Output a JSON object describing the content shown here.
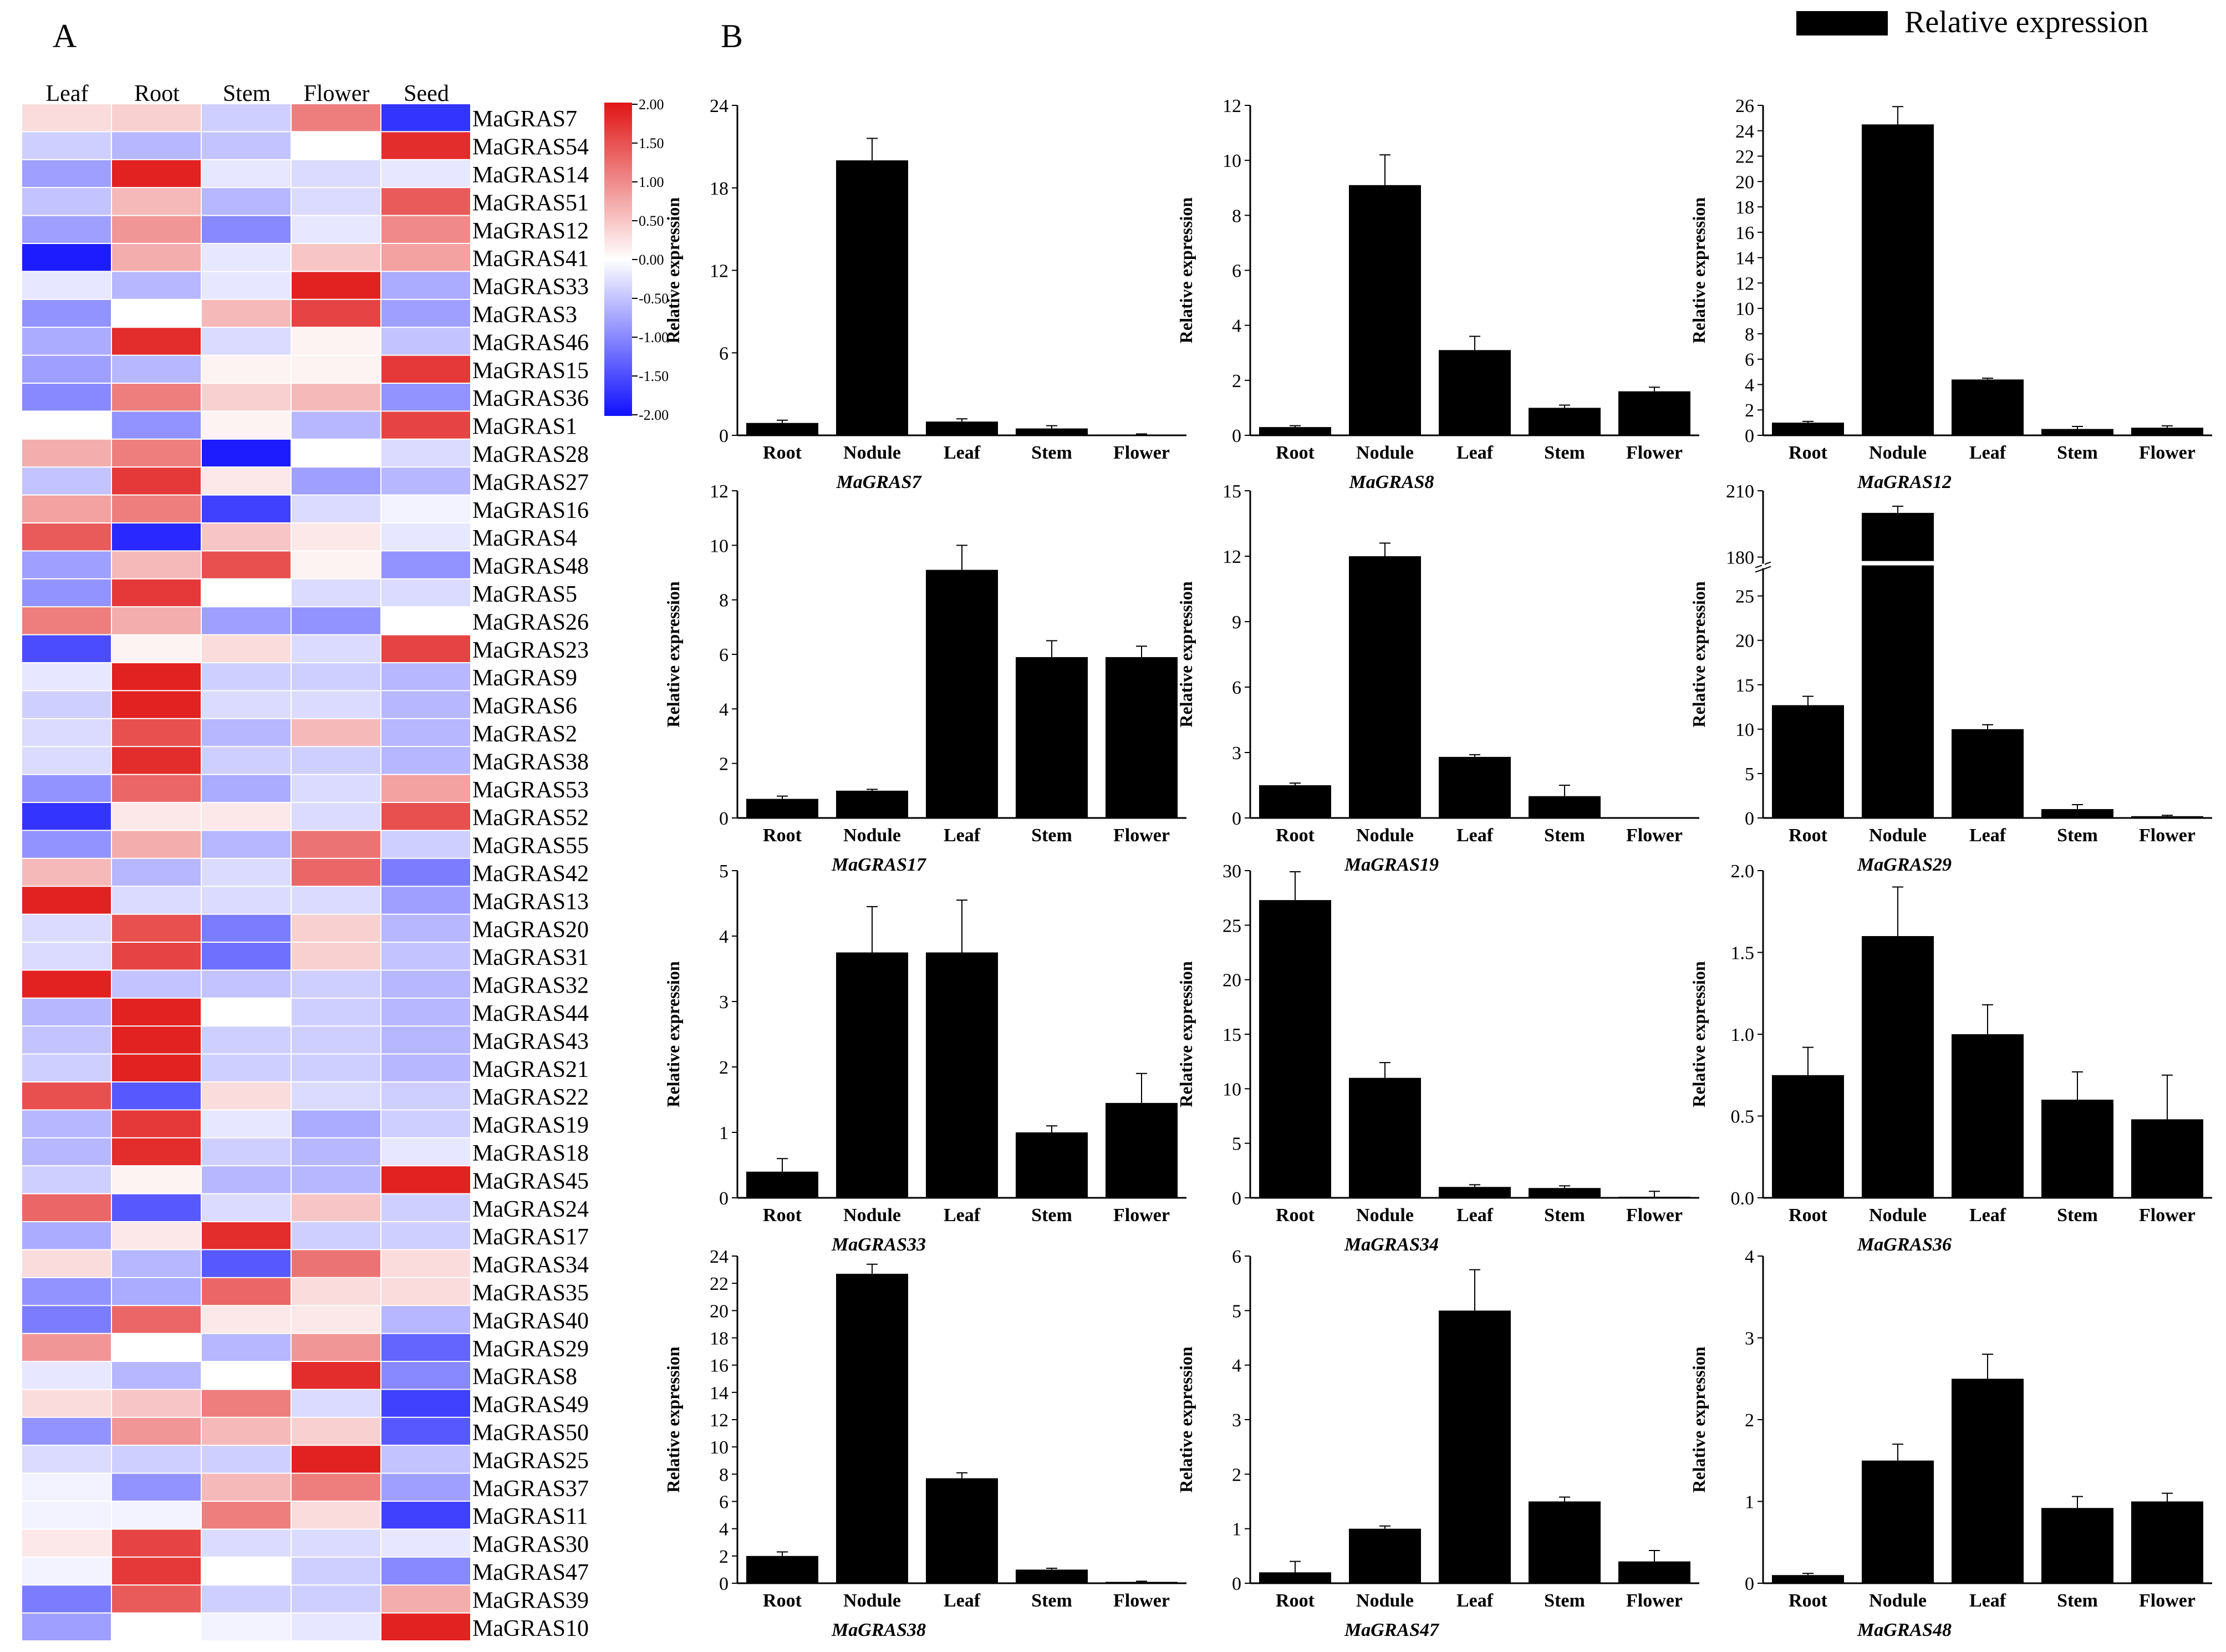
{
  "panels": {
    "a": "A",
    "b": "B"
  },
  "legend": {
    "label": "Relative expression",
    "color": "#000000"
  },
  "colors": {
    "bar": "#000000",
    "low": "#1010ff",
    "mid": "#ffffff",
    "high": "#e01515"
  },
  "chart_data": [
    {
      "type": "heatmap",
      "title": "",
      "columns": [
        "Leaf",
        "Root",
        "Stem",
        "Flower",
        "Seed"
      ],
      "colorbar": {
        "ticks": [
          "2.00",
          "1.50",
          "1.00",
          "0.50",
          "0.00",
          "-0.50",
          "-1.00",
          "-1.50",
          "-2.00"
        ],
        "range": [
          -2,
          2
        ]
      },
      "rows": [
        "MaGRAS7",
        "MaGRAS54",
        "MaGRAS14",
        "MaGRAS51",
        "MaGRAS12",
        "MaGRAS41",
        "MaGRAS33",
        "MaGRAS3",
        "MaGRAS46",
        "MaGRAS15",
        "MaGRAS36",
        "MaGRAS1",
        "MaGRAS28",
        "MaGRAS27",
        "MaGRAS16",
        "MaGRAS4",
        "MaGRAS48",
        "MaGRAS5",
        "MaGRAS26",
        "MaGRAS23",
        "MaGRAS9",
        "MaGRAS6",
        "MaGRAS2",
        "MaGRAS38",
        "MaGRAS53",
        "MaGRAS52",
        "MaGRAS55",
        "MaGRAS42",
        "MaGRAS13",
        "MaGRAS20",
        "MaGRAS31",
        "MaGRAS32",
        "MaGRAS44",
        "MaGRAS43",
        "MaGRAS21",
        "MaGRAS22",
        "MaGRAS19",
        "MaGRAS18",
        "MaGRAS45",
        "MaGRAS24",
        "MaGRAS17",
        "MaGRAS34",
        "MaGRAS35",
        "MaGRAS40",
        "MaGRAS29",
        "MaGRAS8",
        "MaGRAS49",
        "MaGRAS50",
        "MaGRAS25",
        "MaGRAS37",
        "MaGRAS11",
        "MaGRAS30",
        "MaGRAS47",
        "MaGRAS39",
        "MaGRAS10"
      ],
      "values": [
        [
          0.3,
          0.4,
          -0.4,
          1.1,
          -1.7
        ],
        [
          -0.4,
          -0.6,
          -0.5,
          0.0,
          1.8
        ],
        [
          -0.8,
          1.9,
          -0.2,
          -0.3,
          -0.2
        ],
        [
          -0.5,
          0.6,
          -0.6,
          -0.3,
          1.4
        ],
        [
          -0.8,
          0.9,
          -1.0,
          -0.2,
          1.0
        ],
        [
          -1.9,
          0.7,
          -0.2,
          0.5,
          0.8
        ],
        [
          -0.2,
          -0.6,
          -0.2,
          1.9,
          -0.7
        ],
        [
          -0.9,
          0.0,
          0.6,
          1.6,
          -0.8
        ],
        [
          -0.7,
          1.8,
          -0.3,
          0.1,
          -0.5
        ],
        [
          -0.8,
          -0.6,
          0.1,
          0.1,
          1.7
        ],
        [
          -1.0,
          1.1,
          0.4,
          0.6,
          -0.9
        ],
        [
          0.0,
          -0.9,
          0.1,
          -0.6,
          1.6
        ],
        [
          0.7,
          1.1,
          -1.9,
          0.0,
          -0.3
        ],
        [
          -0.5,
          1.7,
          0.2,
          -0.8,
          -0.6
        ],
        [
          0.8,
          1.1,
          -1.6,
          -0.3,
          -0.1
        ],
        [
          1.4,
          -1.8,
          0.5,
          0.2,
          -0.2
        ],
        [
          -0.8,
          0.6,
          1.5,
          0.1,
          -0.9
        ],
        [
          -0.9,
          1.7,
          0.0,
          -0.3,
          -0.3
        ],
        [
          1.1,
          0.7,
          -0.8,
          -0.9,
          0.0
        ],
        [
          -1.5,
          0.1,
          0.3,
          -0.3,
          1.6
        ],
        [
          -0.2,
          1.9,
          -0.4,
          -0.4,
          -0.6
        ],
        [
          -0.4,
          1.9,
          -0.3,
          -0.3,
          -0.6
        ],
        [
          -0.3,
          1.5,
          -0.6,
          0.6,
          -0.6
        ],
        [
          -0.3,
          1.8,
          -0.4,
          -0.4,
          -0.6
        ],
        [
          -0.9,
          1.3,
          -0.7,
          -0.3,
          0.8
        ],
        [
          -1.7,
          0.2,
          0.2,
          -0.3,
          1.5
        ],
        [
          -0.9,
          0.7,
          -0.6,
          1.2,
          -0.4
        ],
        [
          0.6,
          -0.6,
          -0.3,
          1.3,
          -1.1
        ],
        [
          1.9,
          -0.3,
          -0.3,
          -0.3,
          -0.8
        ],
        [
          -0.3,
          1.5,
          -1.1,
          0.4,
          -0.6
        ],
        [
          -0.3,
          1.6,
          -1.2,
          0.4,
          -0.5
        ],
        [
          1.9,
          -0.5,
          -0.5,
          -0.4,
          -0.6
        ],
        [
          -0.6,
          1.9,
          0.0,
          -0.4,
          -0.6
        ],
        [
          -0.5,
          1.9,
          -0.4,
          -0.4,
          -0.6
        ],
        [
          -0.4,
          1.9,
          -0.4,
          -0.4,
          -0.6
        ],
        [
          1.5,
          -1.4,
          0.3,
          -0.3,
          -0.4
        ],
        [
          -0.6,
          1.7,
          -0.2,
          -0.7,
          -0.4
        ],
        [
          -0.6,
          1.8,
          -0.4,
          -0.6,
          -0.2
        ],
        [
          -0.4,
          0.1,
          -0.6,
          -0.6,
          1.9
        ],
        [
          1.3,
          -1.4,
          -0.3,
          0.5,
          -0.4
        ],
        [
          -0.7,
          0.2,
          1.8,
          -0.4,
          -0.4
        ],
        [
          0.3,
          -0.6,
          -1.4,
          1.2,
          0.3
        ],
        [
          -0.9,
          -0.7,
          1.3,
          0.3,
          0.3
        ],
        [
          -1.1,
          1.3,
          0.2,
          0.2,
          -0.6
        ],
        [
          0.9,
          0.0,
          -0.6,
          0.9,
          -1.3
        ],
        [
          -0.2,
          -0.6,
          0.0,
          1.8,
          -1.0
        ],
        [
          0.3,
          0.5,
          1.1,
          -0.3,
          -1.6
        ],
        [
          -0.9,
          0.9,
          0.6,
          0.4,
          -1.4
        ],
        [
          -0.3,
          -0.4,
          -0.4,
          1.9,
          -0.5
        ],
        [
          -0.1,
          -0.9,
          0.6,
          1.1,
          -0.8
        ],
        [
          -0.1,
          -0.1,
          1.1,
          0.3,
          -1.6
        ],
        [
          0.2,
          1.6,
          -0.3,
          -0.3,
          -0.2
        ],
        [
          -0.1,
          1.7,
          0.0,
          -0.4,
          -1.0
        ],
        [
          -1.1,
          1.4,
          -0.4,
          -0.4,
          0.7
        ],
        [
          -0.8,
          0.0,
          -0.1,
          -0.2,
          1.9
        ]
      ]
    },
    {
      "type": "bar",
      "title": "MaGRAS7",
      "ylabel": "Relative expression",
      "categories": [
        "Root",
        "Nodule",
        "Leaf",
        "Stem",
        "Flower"
      ],
      "values": [
        0.9,
        20,
        1.0,
        0.5,
        0.05
      ],
      "errors": [
        0.2,
        1.6,
        0.2,
        0.2,
        0.05
      ],
      "ylim": [
        0,
        24
      ],
      "yticks": [
        "0",
        "6",
        "12",
        "18",
        "24"
      ]
    },
    {
      "type": "bar",
      "title": "MaGRAS8",
      "ylabel": "Relative expression",
      "categories": [
        "Root",
        "Nodule",
        "Leaf",
        "Stem",
        "Flower"
      ],
      "values": [
        0.3,
        9.1,
        3.1,
        1.0,
        1.6
      ],
      "errors": [
        0.05,
        1.1,
        0.5,
        0.1,
        0.15
      ],
      "ylim": [
        0,
        12
      ],
      "yticks": [
        "0",
        "2",
        "4",
        "6",
        "8",
        "10",
        "12"
      ]
    },
    {
      "type": "bar",
      "title": "MaGRAS12",
      "ylabel": "Relative expression",
      "categories": [
        "Root",
        "Nodule",
        "Leaf",
        "Stem",
        "Flower"
      ],
      "values": [
        1.0,
        24.5,
        4.4,
        0.5,
        0.6
      ],
      "errors": [
        0.1,
        1.4,
        0.1,
        0.2,
        0.15
      ],
      "ylim": [
        0,
        26
      ],
      "yticks": [
        "0",
        "2",
        "4",
        "6",
        "8",
        "10",
        "12",
        "14",
        "16",
        "18",
        "20",
        "22",
        "24",
        "26"
      ]
    },
    {
      "type": "bar",
      "title": "MaGRAS17",
      "ylabel": "Relative expression",
      "categories": [
        "Root",
        "Nodule",
        "Leaf",
        "Stem",
        "Flower"
      ],
      "values": [
        0.7,
        1.0,
        9.1,
        5.9,
        5.9
      ],
      "errors": [
        0.1,
        0.05,
        0.9,
        0.6,
        0.4
      ],
      "ylim": [
        0,
        12
      ],
      "yticks": [
        "0",
        "2",
        "4",
        "6",
        "8",
        "10",
        "12"
      ]
    },
    {
      "type": "bar",
      "title": "MaGRAS19",
      "ylabel": "Relative expression",
      "categories": [
        "Root",
        "Nodule",
        "Leaf",
        "Stem",
        "Flower"
      ],
      "values": [
        1.5,
        12.0,
        2.8,
        1.0,
        0.0
      ],
      "errors": [
        0.1,
        0.6,
        0.1,
        0.5,
        0.0
      ],
      "ylim": [
        0,
        15
      ],
      "yticks": [
        "0",
        "3",
        "6",
        "9",
        "12",
        "15"
      ]
    },
    {
      "type": "bar",
      "title": "MaGRAS29",
      "ylabel": "Relative expression",
      "categories": [
        "Root",
        "Nodule",
        "Leaf",
        "Stem",
        "Flower"
      ],
      "values": [
        12.7,
        200,
        10.0,
        1.0,
        0.2
      ],
      "errors": [
        1.0,
        3.0,
        0.5,
        0.5,
        0.1
      ],
      "ylim": [
        0,
        210
      ],
      "yticks": [
        "0",
        "5",
        "10",
        "15",
        "20",
        "25",
        "180",
        "210"
      ],
      "axis_break": [
        28,
        180
      ]
    },
    {
      "type": "bar",
      "title": "MaGRAS33",
      "ylabel": "Relative expression",
      "categories": [
        "Root",
        "Nodule",
        "Leaf",
        "Stem",
        "Flower"
      ],
      "values": [
        0.4,
        3.75,
        3.75,
        1.0,
        1.45
      ],
      "errors": [
        0.2,
        0.7,
        0.8,
        0.1,
        0.45
      ],
      "ylim": [
        0,
        5
      ],
      "yticks": [
        "0",
        "1",
        "2",
        "3",
        "4",
        "5"
      ]
    },
    {
      "type": "bar",
      "title": "MaGRAS34",
      "ylabel": "Relative expression",
      "categories": [
        "Root",
        "Nodule",
        "Leaf",
        "Stem",
        "Flower"
      ],
      "values": [
        27.3,
        11.0,
        1.0,
        0.9,
        0.1
      ],
      "errors": [
        2.6,
        1.4,
        0.2,
        0.2,
        0.5
      ],
      "ylim": [
        0,
        30
      ],
      "yticks": [
        "0",
        "5",
        "10",
        "15",
        "20",
        "25",
        "30"
      ]
    },
    {
      "type": "bar",
      "title": "MaGRAS36",
      "ylabel": "Relative expression",
      "categories": [
        "Root",
        "Nodule",
        "Leaf",
        "Stem",
        "Flower"
      ],
      "values": [
        0.75,
        1.6,
        1.0,
        0.6,
        0.48
      ],
      "errors": [
        0.17,
        0.3,
        0.18,
        0.17,
        0.27
      ],
      "ylim": [
        0,
        2.0
      ],
      "yticks": [
        "0.0",
        "0.5",
        "1.0",
        "1.5",
        "2.0"
      ]
    },
    {
      "type": "bar",
      "title": "MaGRAS38",
      "ylabel": "Relative expression",
      "categories": [
        "Root",
        "Nodule",
        "Leaf",
        "Stem",
        "Flower"
      ],
      "values": [
        2.0,
        22.7,
        7.7,
        1.0,
        0.1
      ],
      "errors": [
        0.3,
        0.7,
        0.4,
        0.1,
        0.05
      ],
      "ylim": [
        0,
        24
      ],
      "yticks": [
        "0",
        "2",
        "4",
        "6",
        "8",
        "10",
        "12",
        "14",
        "16",
        "18",
        "20",
        "22",
        "24"
      ]
    },
    {
      "type": "bar",
      "title": "MaGRAS47",
      "ylabel": "Relative expression",
      "categories": [
        "Root",
        "Nodule",
        "Leaf",
        "Stem",
        "Flower"
      ],
      "values": [
        0.2,
        1.0,
        5.0,
        1.5,
        0.4
      ],
      "errors": [
        0.2,
        0.05,
        0.75,
        0.08,
        0.2
      ],
      "ylim": [
        0,
        6
      ],
      "yticks": [
        "0",
        "1",
        "2",
        "3",
        "4",
        "5",
        "6"
      ]
    },
    {
      "type": "bar",
      "title": "MaGRAS48",
      "ylabel": "Relative expression",
      "categories": [
        "Root",
        "Nodule",
        "Leaf",
        "Stem",
        "Flower"
      ],
      "values": [
        0.1,
        1.5,
        2.5,
        0.92,
        1.0
      ],
      "errors": [
        0.02,
        0.2,
        0.3,
        0.14,
        0.1
      ],
      "ylim": [
        0,
        4
      ],
      "yticks": [
        "0",
        "1",
        "2",
        "3",
        "4"
      ]
    }
  ]
}
